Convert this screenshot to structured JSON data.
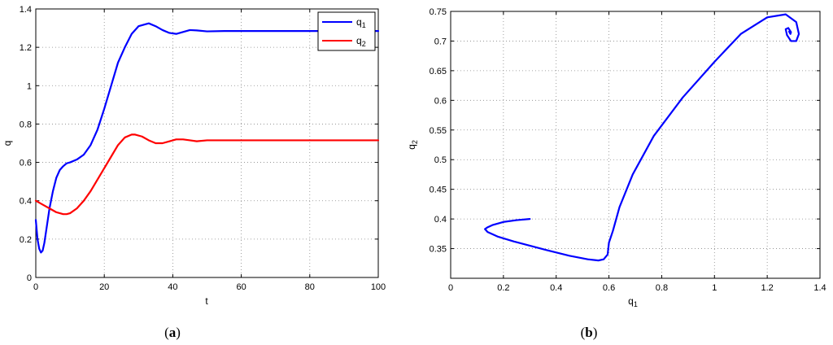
{
  "chart_data": [
    {
      "type": "line",
      "caption": "(a)",
      "xlabel": "t",
      "ylabel": "q",
      "xlim": [
        0,
        100
      ],
      "ylim": [
        0,
        1.4
      ],
      "xticks": [
        0,
        20,
        40,
        60,
        80,
        100
      ],
      "yticks": [
        0,
        0.2,
        0.4,
        0.6,
        0.8,
        1,
        1.2,
        1.4
      ],
      "grid": true,
      "legend_position": "top-right",
      "series": [
        {
          "name": "q1",
          "color": "#0000ff",
          "x": [
            0,
            0.5,
            1,
            1.5,
            2,
            2.5,
            3,
            4,
            5,
            6,
            7,
            8,
            9,
            10,
            12,
            14,
            16,
            18,
            20,
            22,
            24,
            26,
            28,
            30,
            32,
            33,
            35,
            37,
            39,
            41,
            43,
            45,
            47,
            50,
            55,
            60,
            70,
            80,
            90,
            100
          ],
          "y": [
            0.3,
            0.2,
            0.15,
            0.13,
            0.14,
            0.18,
            0.24,
            0.36,
            0.45,
            0.52,
            0.56,
            0.58,
            0.595,
            0.6,
            0.615,
            0.64,
            0.69,
            0.77,
            0.88,
            1.0,
            1.12,
            1.2,
            1.27,
            1.31,
            1.32,
            1.325,
            1.31,
            1.29,
            1.275,
            1.27,
            1.28,
            1.29,
            1.288,
            1.283,
            1.285,
            1.285,
            1.285,
            1.285,
            1.285,
            1.285
          ]
        },
        {
          "name": "q2",
          "color": "#ff0000",
          "x": [
            0,
            2,
            4,
            6,
            8,
            9,
            10,
            12,
            14,
            16,
            18,
            20,
            22,
            24,
            26,
            28,
            29,
            31,
            33,
            35,
            37,
            39,
            41,
            43,
            45,
            47,
            50,
            55,
            60,
            70,
            80,
            90,
            100
          ],
          "y": [
            0.4,
            0.38,
            0.36,
            0.34,
            0.33,
            0.33,
            0.335,
            0.36,
            0.4,
            0.45,
            0.51,
            0.57,
            0.63,
            0.69,
            0.73,
            0.745,
            0.745,
            0.735,
            0.715,
            0.7,
            0.7,
            0.71,
            0.72,
            0.72,
            0.715,
            0.71,
            0.715,
            0.715,
            0.715,
            0.715,
            0.715,
            0.715,
            0.715
          ]
        }
      ]
    },
    {
      "type": "line",
      "caption": "(b)",
      "xlabel": "q1",
      "ylabel": "q2",
      "xlim": [
        0,
        1.4
      ],
      "ylim": [
        0.3,
        0.75
      ],
      "xticks": [
        0,
        0.2,
        0.4,
        0.6,
        0.8,
        1,
        1.2,
        1.4
      ],
      "yticks": [
        0.35,
        0.4,
        0.45,
        0.5,
        0.55,
        0.6,
        0.65,
        0.7,
        0.75
      ],
      "grid": true,
      "series": [
        {
          "color": "#0000ff",
          "x": [
            0.3,
            0.25,
            0.2,
            0.16,
            0.14,
            0.13,
            0.14,
            0.18,
            0.24,
            0.36,
            0.45,
            0.52,
            0.56,
            0.58,
            0.595,
            0.6,
            0.615,
            0.64,
            0.69,
            0.77,
            0.88,
            1.0,
            1.1,
            1.2,
            1.27,
            1.31,
            1.32,
            1.31,
            1.29,
            1.275,
            1.27,
            1.28,
            1.29,
            1.288,
            1.283,
            1.285
          ],
          "y": [
            0.4,
            0.398,
            0.395,
            0.39,
            0.386,
            0.383,
            0.378,
            0.37,
            0.362,
            0.348,
            0.338,
            0.332,
            0.33,
            0.332,
            0.34,
            0.36,
            0.38,
            0.42,
            0.475,
            0.54,
            0.605,
            0.665,
            0.712,
            0.74,
            0.745,
            0.732,
            0.712,
            0.7,
            0.7,
            0.71,
            0.72,
            0.722,
            0.715,
            0.712,
            0.716,
            0.715
          ]
        }
      ]
    }
  ]
}
